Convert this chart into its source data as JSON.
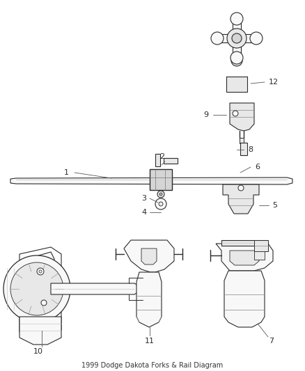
{
  "background_color": "#ffffff",
  "line_color": "#2a2a2a",
  "label_color": "#1a1a1a",
  "figsize": [
    4.38,
    5.33
  ],
  "dpi": 100,
  "title": "1999 Dodge Dakota Forks & Rail Diagram",
  "title_fontsize": 7,
  "label_fontsize": 8,
  "lw": 0.8
}
